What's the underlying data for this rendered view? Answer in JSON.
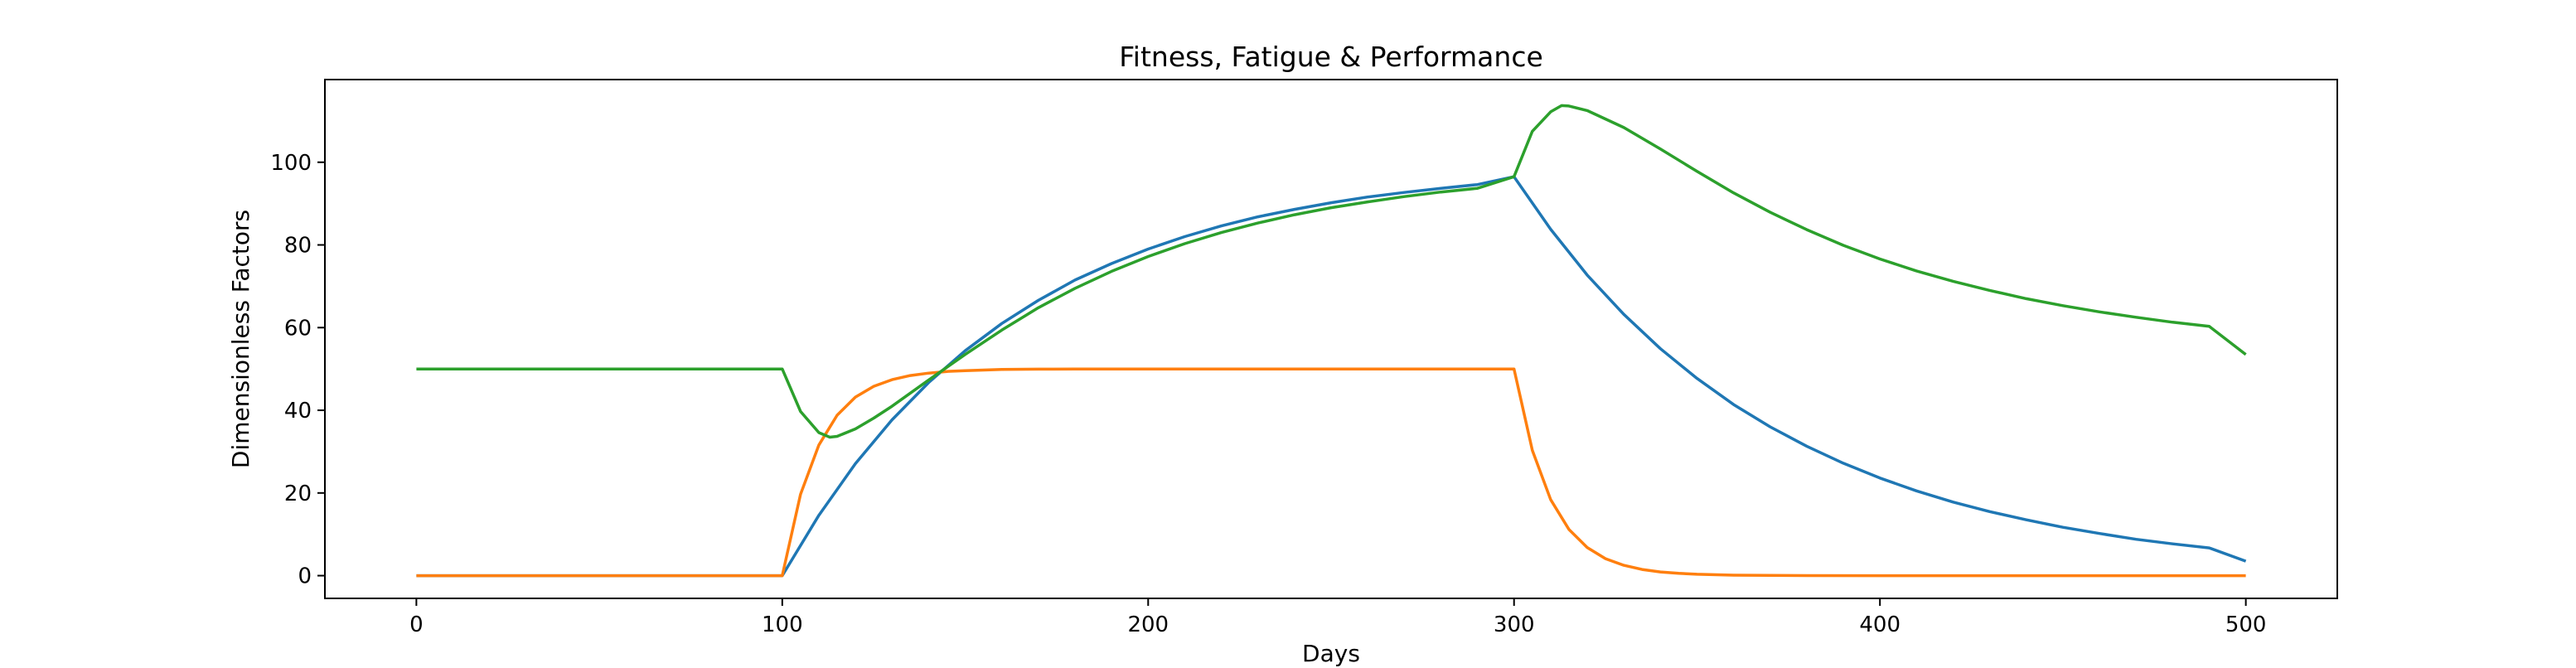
{
  "chart_data": {
    "type": "line",
    "title": "Fitness, Fatigue & Performance",
    "xlabel": "Days",
    "ylabel": "Dimensionless Factors",
    "xlim": [
      -25,
      525
    ],
    "ylim": [
      -5.5,
      120
    ],
    "xticks": [
      0,
      100,
      200,
      300,
      400,
      500
    ],
    "yticks": [
      0,
      20,
      40,
      60,
      80,
      100
    ],
    "grid": false,
    "legend": "none",
    "series": [
      {
        "color": "#1f77b4",
        "x": [
          0,
          100,
          110,
          120,
          130,
          140,
          150,
          160,
          170,
          180,
          190,
          200,
          210,
          220,
          230,
          240,
          250,
          260,
          270,
          280,
          290,
          300,
          310,
          320,
          330,
          340,
          350,
          360,
          370,
          380,
          390,
          400,
          410,
          420,
          430,
          440,
          450,
          460,
          470,
          480,
          490,
          500
        ],
        "y": [
          0,
          0,
          14.6,
          27.1,
          37.7,
          46.7,
          54.4,
          61.0,
          66.6,
          71.5,
          75.5,
          79.0,
          82.0,
          84.6,
          86.8,
          88.6,
          90.2,
          91.6,
          92.7,
          93.7,
          94.6,
          96.5,
          83.8,
          72.7,
          63.2,
          54.9,
          47.7,
          41.4,
          36.0,
          31.3,
          27.2,
          23.6,
          20.5,
          17.8,
          15.5,
          13.5,
          11.7,
          10.2,
          8.8,
          7.7,
          6.7,
          3.5
        ]
      },
      {
        "color": "#ff7f0e",
        "x": [
          0,
          100,
          105,
          110,
          115,
          120,
          125,
          130,
          135,
          140,
          145,
          150,
          160,
          170,
          180,
          200,
          250,
          300,
          305,
          310,
          315,
          320,
          325,
          330,
          335,
          340,
          345,
          350,
          360,
          370,
          380,
          400,
          450,
          500
        ],
        "y": [
          0,
          0,
          19.7,
          31.6,
          38.8,
          43.2,
          45.8,
          47.4,
          48.4,
          49.0,
          49.4,
          49.6,
          49.9,
          49.95,
          50,
          50,
          50,
          50,
          30.3,
          18.4,
          11.2,
          6.8,
          4.1,
          2.5,
          1.5,
          0.9,
          0.55,
          0.33,
          0.12,
          0.05,
          0.02,
          0,
          0,
          0
        ]
      },
      {
        "color": "#2ca02c",
        "x": [
          0,
          100,
          105,
          110,
          113,
          115,
          120,
          125,
          130,
          140,
          150,
          160,
          170,
          180,
          190,
          200,
          210,
          220,
          230,
          240,
          250,
          260,
          270,
          280,
          290,
          300,
          305,
          310,
          313,
          315,
          320,
          330,
          340,
          350,
          360,
          370,
          380,
          390,
          400,
          410,
          420,
          430,
          440,
          450,
          460,
          470,
          480,
          490,
          500
        ],
        "y": [
          50,
          50,
          39.7,
          34.6,
          33.5,
          33.7,
          35.5,
          38.1,
          41.0,
          47.3,
          53.5,
          59.4,
          64.8,
          69.5,
          73.6,
          77.2,
          80.3,
          83.0,
          85.3,
          87.3,
          89.0,
          90.4,
          91.7,
          92.8,
          93.7,
          96.5,
          107.5,
          112.2,
          113.7,
          113.6,
          112.5,
          108.4,
          103.2,
          97.8,
          92.6,
          87.9,
          83.7,
          79.9,
          76.6,
          73.7,
          71.2,
          69.0,
          67.0,
          65.3,
          63.8,
          62.5,
          61.3,
          60.3,
          53.5
        ]
      }
    ]
  }
}
